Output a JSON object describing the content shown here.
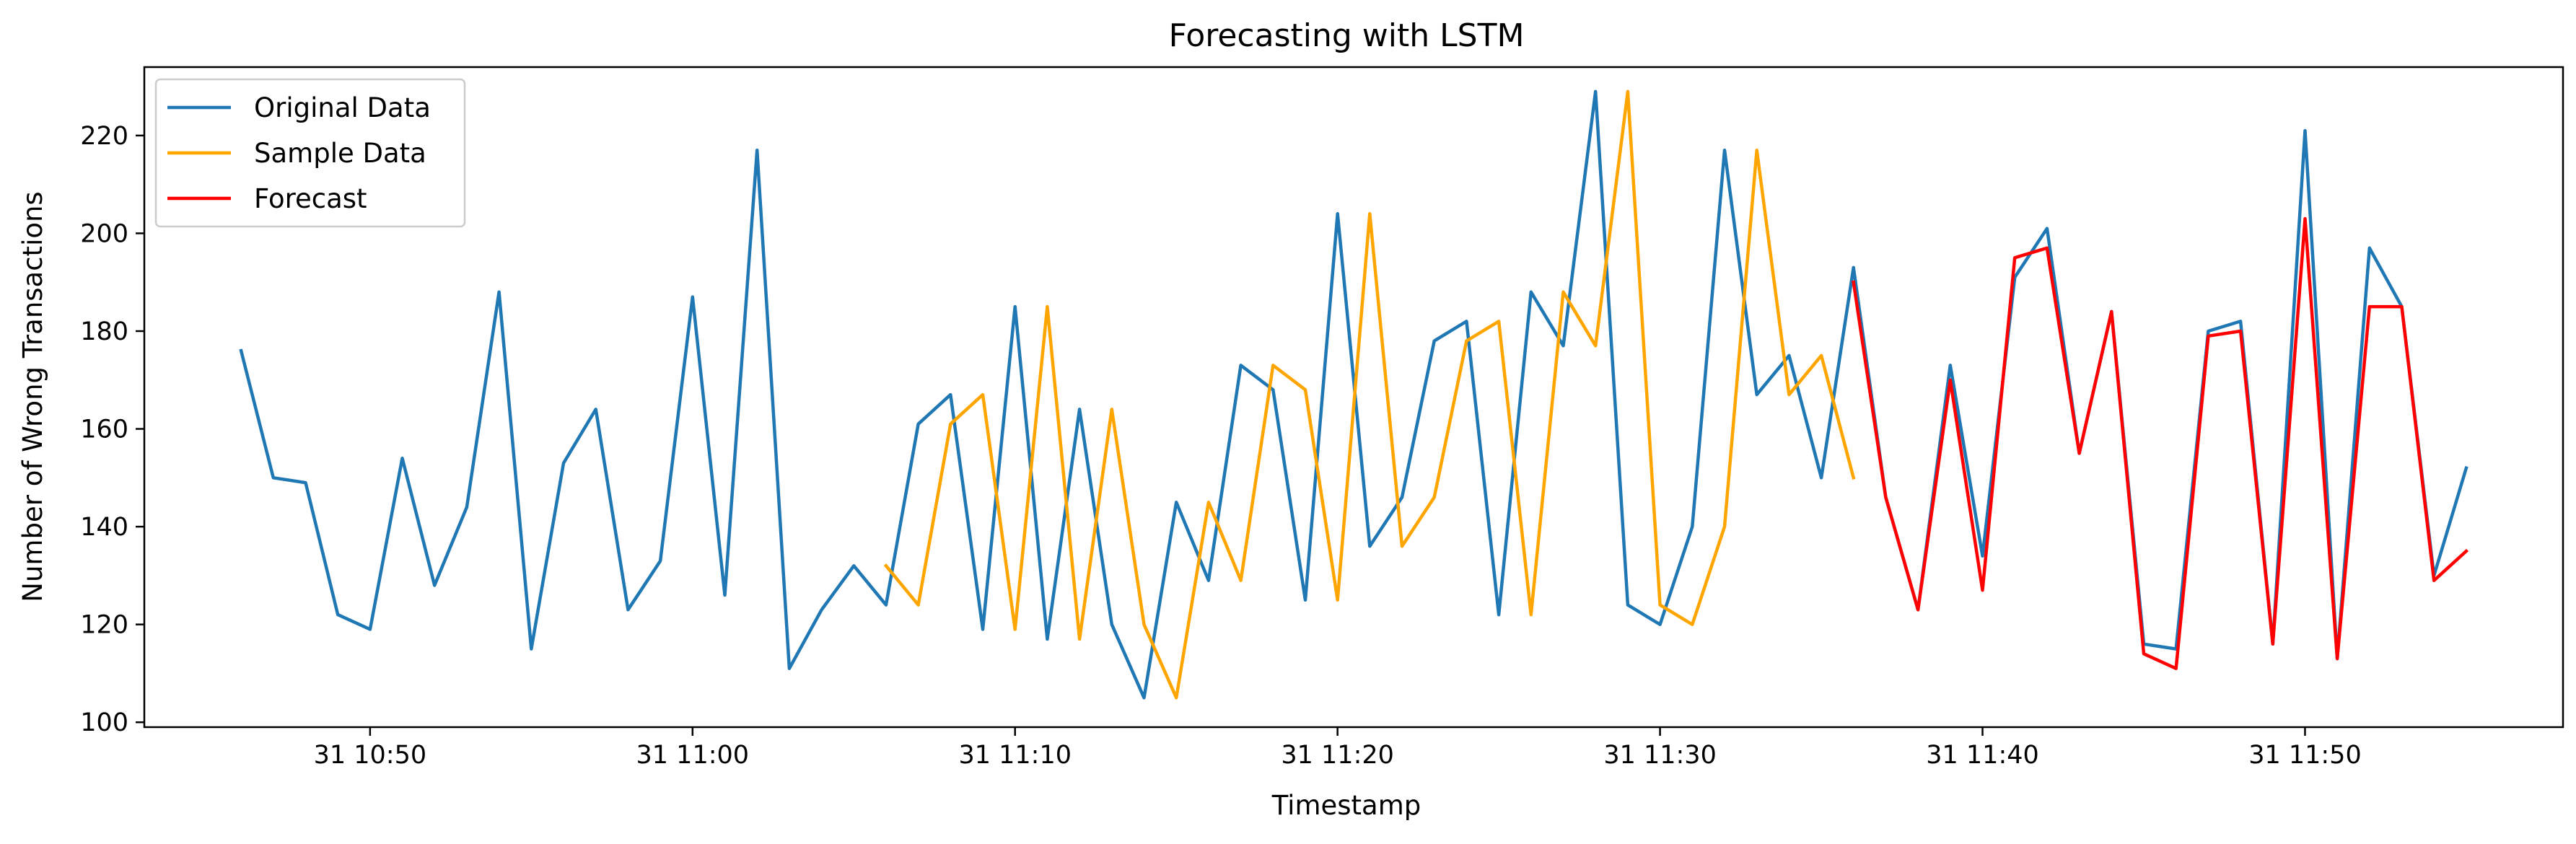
{
  "chart_data": {
    "type": "line",
    "title": "Forecasting with LSTM",
    "xlabel": "Timestamp",
    "ylabel": "Number of Wrong Transactions",
    "x_start": "31 10:46",
    "x_step_minutes": 1,
    "xlim": [
      "31 10:43",
      "31 11:58"
    ],
    "ylim": [
      99,
      234
    ],
    "xticks": [
      {
        "label": "31 10:50",
        "value": "31 10:50"
      },
      {
        "label": "31 11:00",
        "value": "31 11:00"
      },
      {
        "label": "31 11:10",
        "value": "31 11:10"
      },
      {
        "label": "31 11:20",
        "value": "31 11:20"
      },
      {
        "label": "31 11:30",
        "value": "31 11:30"
      },
      {
        "label": "31 11:40",
        "value": "31 11:40"
      },
      {
        "label": "31 11:50",
        "value": "31 11:50"
      }
    ],
    "yticks": [
      100,
      120,
      140,
      160,
      180,
      200,
      220
    ],
    "grid": false,
    "legend_position": "top-left",
    "series": [
      {
        "name": "Original Data",
        "color": "#1f77b4",
        "start_index": 0,
        "values": [
          176,
          150,
          149,
          122,
          119,
          154,
          128,
          144,
          188,
          115,
          153,
          164,
          123,
          133,
          187,
          126,
          217,
          111,
          123,
          132,
          124,
          161,
          167,
          119,
          185,
          117,
          164,
          120,
          105,
          145,
          129,
          173,
          168,
          125,
          204,
          136,
          146,
          178,
          182,
          122,
          188,
          177,
          229,
          124,
          120,
          140,
          217,
          167,
          175,
          150,
          193,
          146,
          123,
          173,
          134,
          191,
          201,
          155,
          184,
          116,
          115,
          180,
          182,
          116,
          221,
          113,
          197,
          185,
          130,
          152
        ]
      },
      {
        "name": "Sample Data",
        "color": "#ffa500",
        "start_index": 20,
        "values": [
          132,
          124,
          161,
          167,
          119,
          185,
          117,
          164,
          120,
          105,
          145,
          129,
          173,
          168,
          125,
          204,
          136,
          146,
          178,
          182,
          122,
          188,
          177,
          229,
          124,
          120,
          140,
          217,
          167,
          175,
          150
        ]
      },
      {
        "name": "Forecast",
        "color": "#ff0000",
        "start_index": 50,
        "values": [
          190,
          146,
          123,
          170,
          127,
          195,
          197,
          155,
          184,
          114,
          111,
          179,
          180,
          116,
          203,
          113,
          185,
          185,
          129,
          135
        ]
      }
    ]
  }
}
